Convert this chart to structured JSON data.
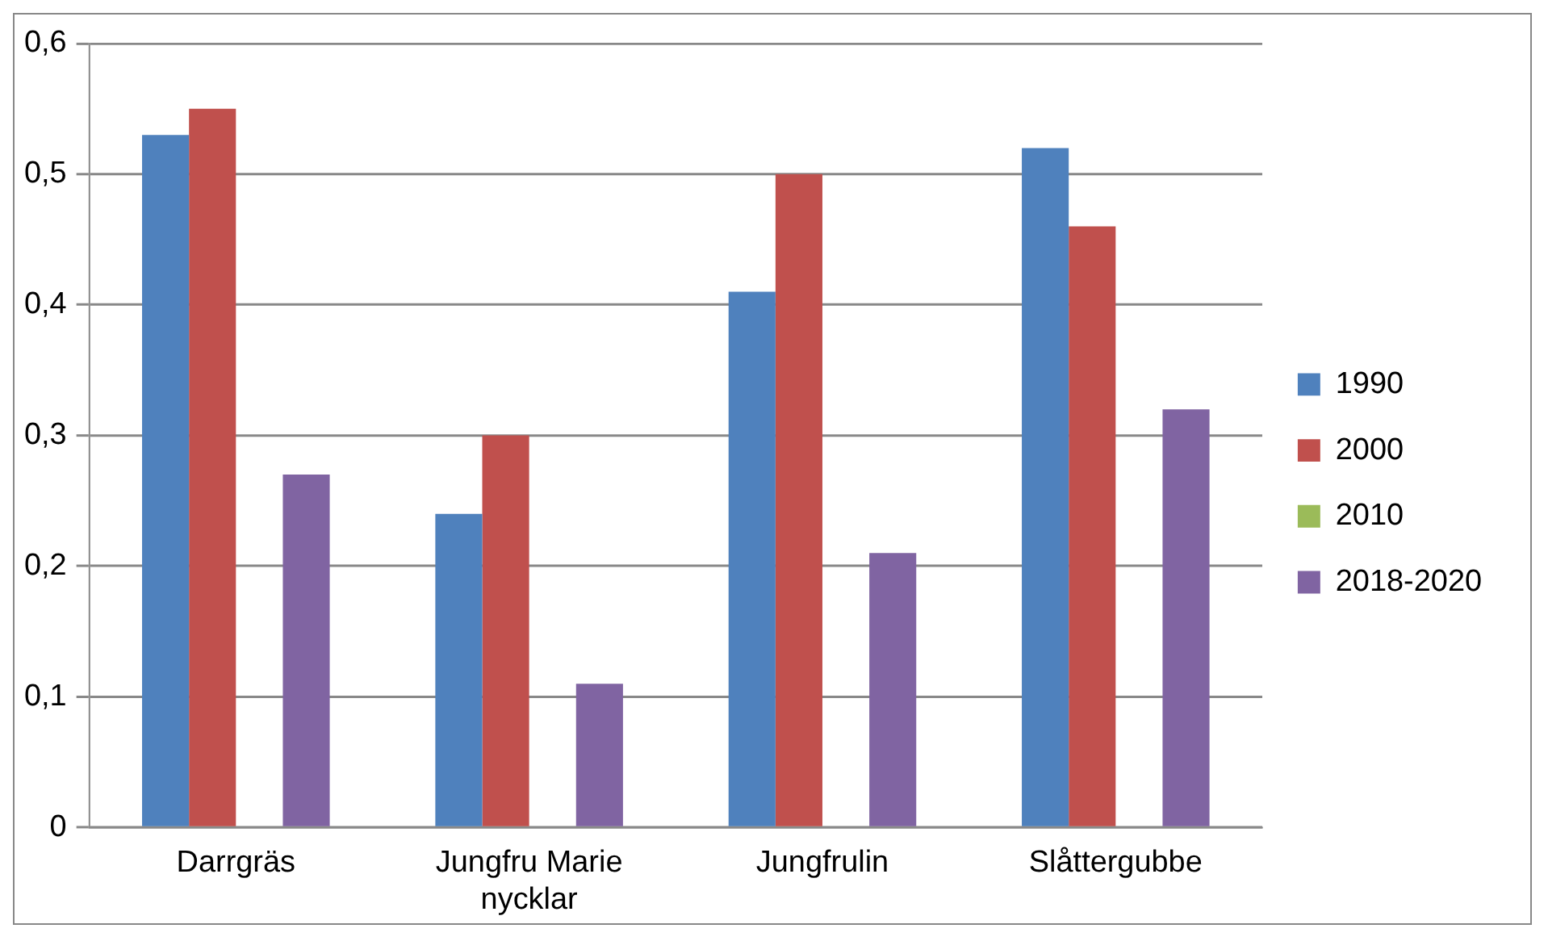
{
  "chart_data": {
    "type": "bar",
    "categories": [
      "Darrgräs",
      "Jungfru Marie nycklar",
      "Jungfrulin",
      "Slåttergubbe"
    ],
    "series": [
      {
        "name": "1990",
        "color": "#4f81bd",
        "values": [
          0.53,
          0.24,
          0.41,
          0.52
        ]
      },
      {
        "name": "2000",
        "color": "#c0504d",
        "values": [
          0.55,
          0.3,
          0.5,
          0.46
        ]
      },
      {
        "name": "2010",
        "color": "#9bbb59",
        "values": [
          null,
          null,
          null,
          null
        ]
      },
      {
        "name": "2018-2020",
        "color": "#8064a2",
        "values": [
          0.27,
          0.11,
          0.21,
          0.32
        ]
      }
    ],
    "ylim": [
      0,
      0.6
    ],
    "yticks": [
      0,
      {
        "value": 0.1,
        "label": "0,1"
      },
      {
        "value": 0.2,
        "label": "0,2"
      },
      {
        "value": 0.3,
        "label": "0,3"
      },
      {
        "value": 0.4,
        "label": "0,4"
      },
      {
        "value": 0.5,
        "label": "0,5"
      },
      {
        "value": 0.6,
        "label": "0,6"
      }
    ],
    "grid": "y",
    "legend": "right"
  }
}
